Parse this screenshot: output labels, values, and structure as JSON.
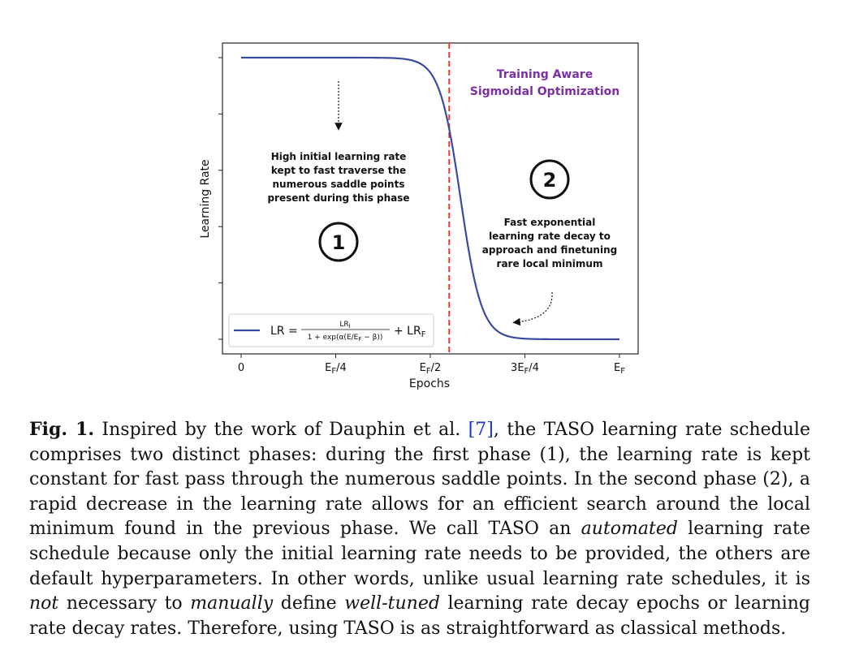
{
  "chart_data": {
    "type": "line",
    "xlabel": "Epochs",
    "ylabel": "Learning Rate",
    "x_ticks": [
      "0",
      "E_F/4",
      "E_F/2",
      "3E_F/4",
      "E_F"
    ],
    "x_range": [
      0,
      1
    ],
    "y_range": [
      0,
      1
    ],
    "series": [
      {
        "name": "LR = LR_I / (1 + exp(α(E/E_F − β))) + LR_F",
        "color": "#3b4aa0",
        "curve": {
          "type": "sigmoid",
          "alpha": 36,
          "beta": 0.58,
          "lr_initial": 1.0,
          "lr_final": 0.0
        }
      }
    ],
    "vline": {
      "x": 0.55,
      "color": "#e53935",
      "style": "dashed"
    },
    "legend_position": "bottom-left",
    "annotations": {
      "title_line1": "Training Aware",
      "title_line2": "Sigmoidal Optimization",
      "title_color": "#7b2fa8",
      "phase1_lines": [
        "High initial learning rate",
        "kept to fast traverse the",
        "numerous saddle points",
        "present during this phase"
      ],
      "phase1_marker": "1",
      "phase2_lines": [
        "Fast exponential",
        "learning rate decay to",
        "approach and finetuning",
        "rare local minimum"
      ],
      "phase2_marker": "2"
    }
  },
  "caption": {
    "label": "Fig. 1.",
    "p1": " Inspired by the work of Dauphin et al. ",
    "ref": "[7]",
    "p2": ", the TASO learning rate schedule comprises two distinct phases: during the first phase (1), the learning rate is kept constant for fast pass through the numerous saddle points. In the second phase (2), a rapid decrease in the learning rate allows for an efficient search around the local minimum found in the previous phase. We call TASO an ",
    "em1": "automated",
    "p3": " learning rate schedule because only the initial learning rate needs to be provided, the others are default hyperparameters. In other words, unlike usual learning rate schedules, it is ",
    "em2": "not",
    "p4": " necessary to ",
    "em3": "manually",
    "p5": " define ",
    "em4": "well-tuned",
    "p6": " learning rate decay epochs or learning rate decay rates. Therefore, using TASO is as straightforward as classical methods."
  }
}
